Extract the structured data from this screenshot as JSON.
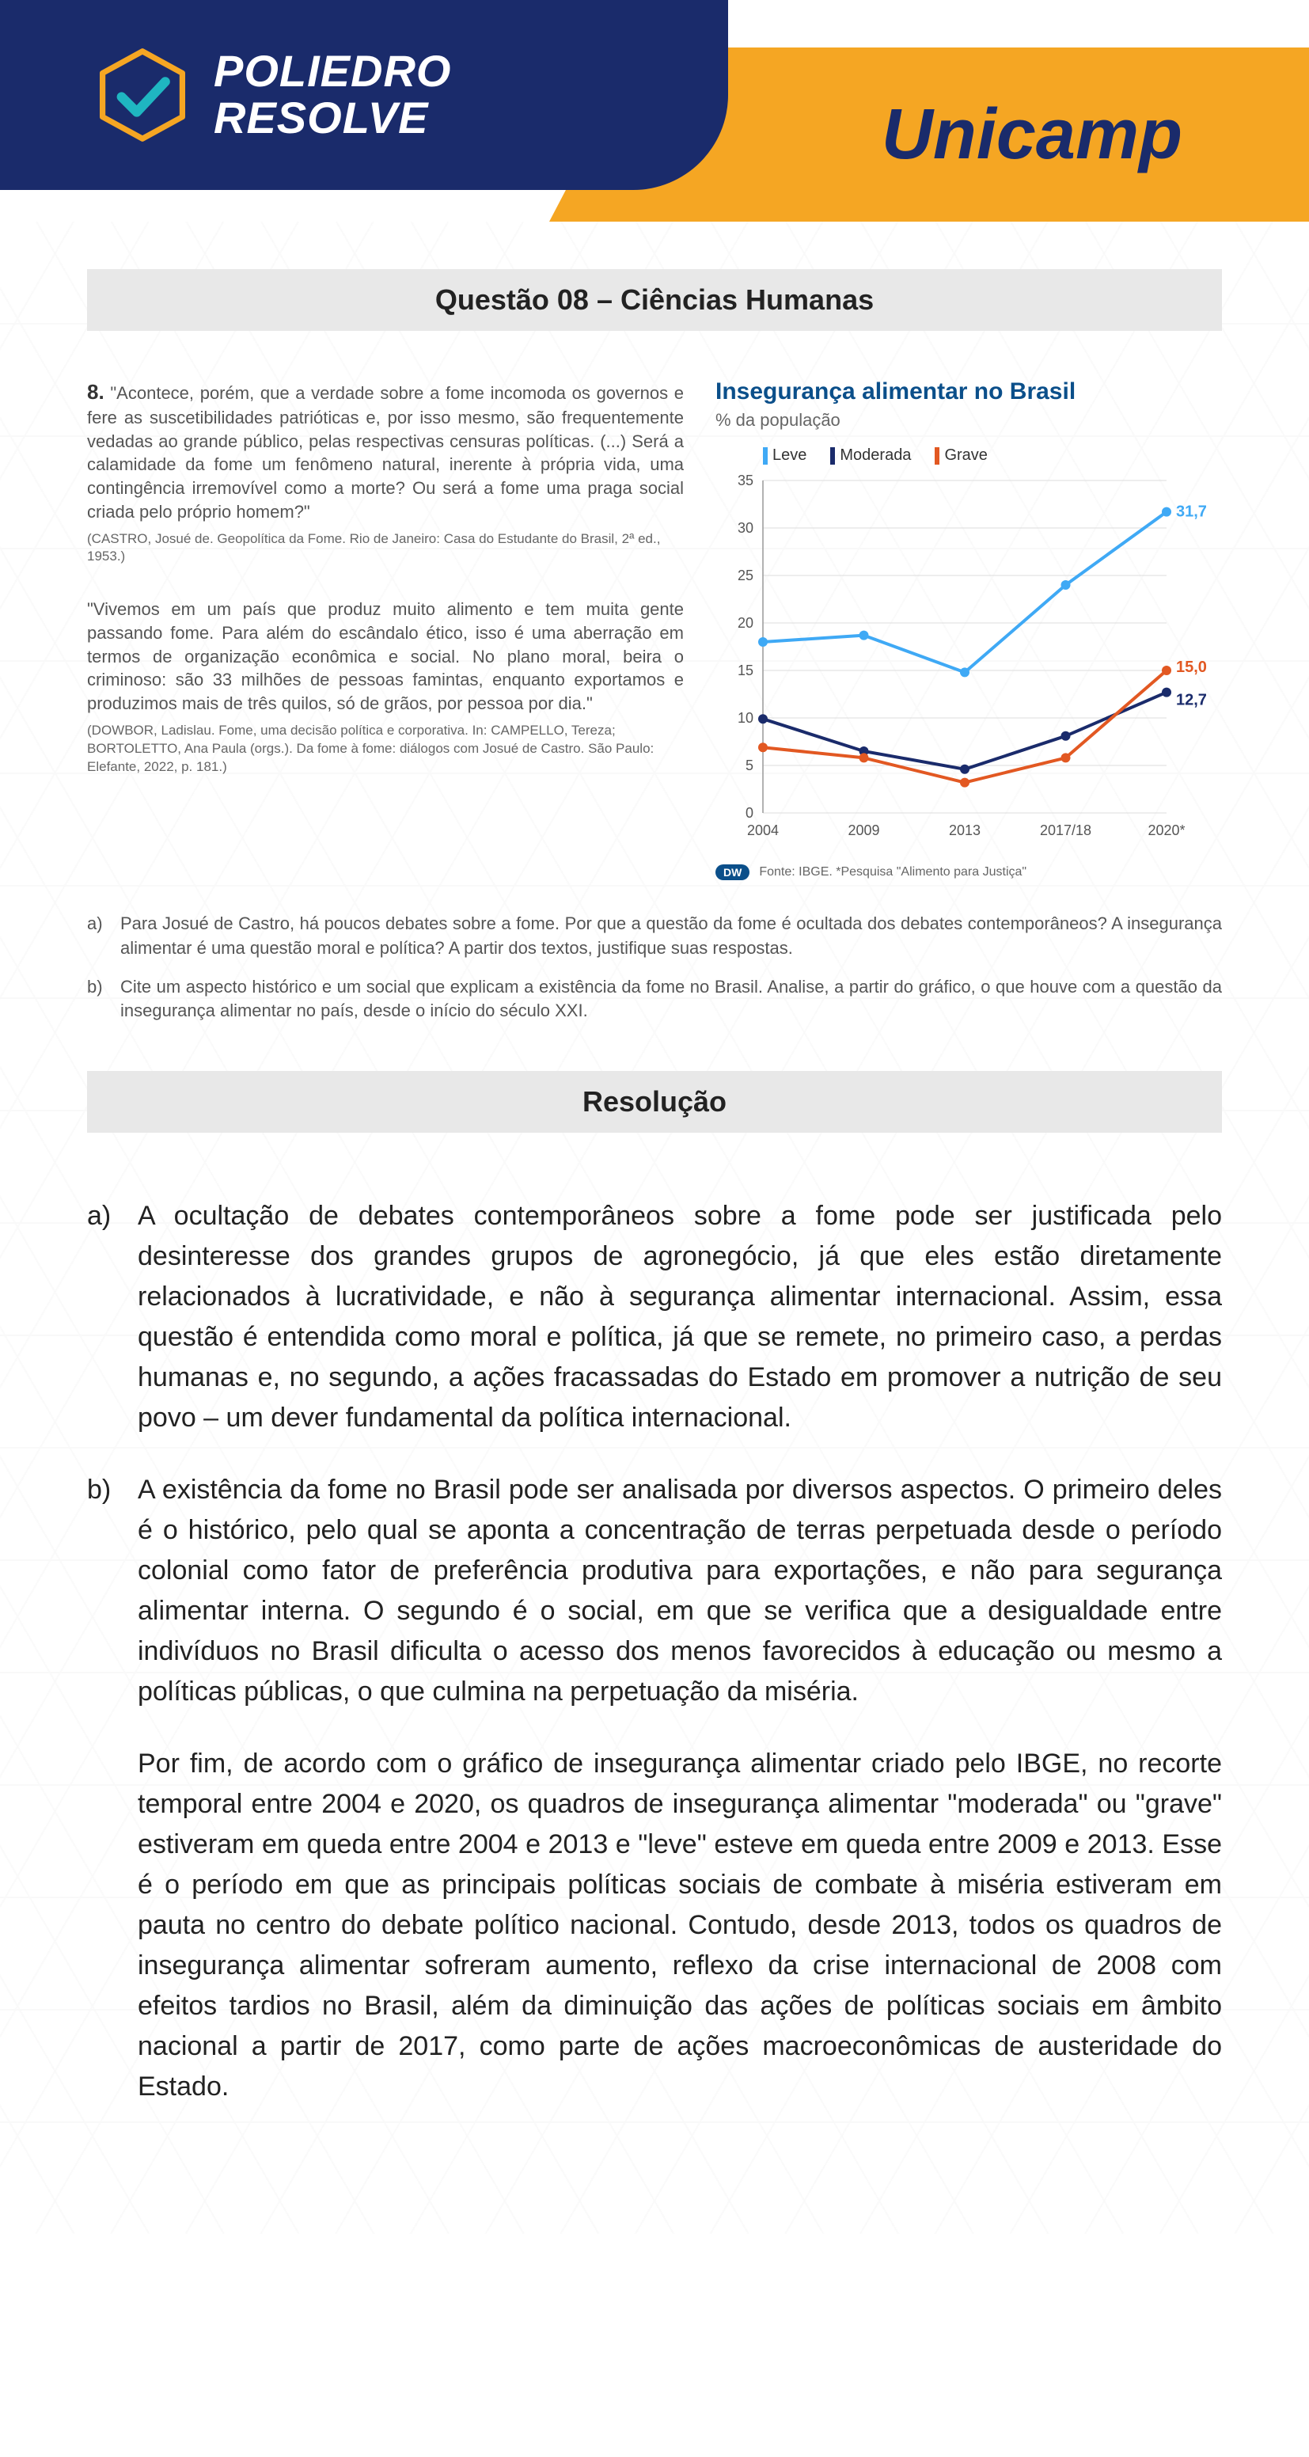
{
  "header": {
    "brand_line1": "POLIEDRO",
    "brand_line2": "RESOLVE",
    "exam": "Unicamp",
    "logo_stroke": "#f5a623",
    "logo_check": "#1fb6c1"
  },
  "section_title": "Questão 08 – Ciências Humanas",
  "question": {
    "number": "8.",
    "quote1": "\"Acontece, porém, que a verdade sobre a fome incomoda os governos e fere as suscetibilidades patrióticas e, por isso mesmo, são frequentemente vedadas ao grande público, pelas respectivas censuras políticas. (...) Será a calamidade da fome um fenômeno natural, inerente à própria vida, uma contingência irremovível como a morte? Ou será a fome uma praga social criada pelo próprio homem?\"",
    "source1": "(CASTRO, Josué de. Geopolítica da Fome. Rio de Janeiro: Casa do Estudante do Brasil, 2ª ed., 1953.)",
    "quote2": "\"Vivemos em um país que produz muito alimento e tem muita gente passando fome. Para além do escândalo ético, isso é uma aberração em termos de organização econômica e social. No plano moral, beira o criminoso: são 33 milhões de pessoas famintas, enquanto exportamos e produzimos mais de três quilos, só de grãos, por pessoa por dia.\"",
    "source2": "(DOWBOR, Ladislau. Fome, uma decisão política e corporativa. In: CAMPELLO, Tereza; BORTOLETTO, Ana Paula (orgs.). Da fome à fome: diálogos com Josué de Castro. São Paulo: Elefante, 2022, p. 181.)",
    "item_a_label": "a)",
    "item_a": "Para Josué de Castro, há poucos debates sobre a fome. Por que a questão da fome é ocultada dos debates contemporâneos? A insegurança alimentar é uma questão moral e política? A partir dos textos, justifique suas respostas.",
    "item_b_label": "b)",
    "item_b": "Cite um aspecto histórico e um social que explicam a existência da fome no Brasil. Analise, a partir do gráfico, o que houve com a questão da insegurança alimentar no país, desde o início do século XXI."
  },
  "chart": {
    "title": "Insegurança alimentar no Brasil",
    "subtitle": "% da população",
    "legend": {
      "leve": {
        "label": "Leve",
        "color": "#3fa9f5"
      },
      "moderada": {
        "label": "Moderada",
        "color": "#1a2b6b"
      },
      "grave": {
        "label": "Grave",
        "color": "#e25822"
      }
    },
    "x_labels": [
      "2004",
      "2009",
      "2013",
      "2017/18",
      "2020*"
    ],
    "y_ticks": [
      0,
      5,
      10,
      15,
      20,
      25,
      30,
      35
    ],
    "ylim": [
      0,
      35
    ],
    "grid_color": "#dddddd",
    "axis_color": "#999999",
    "text_color": "#555555",
    "end_labels": {
      "leve": "31,7",
      "grave": "15,0",
      "moderada": "12,7"
    },
    "series": {
      "leve": [
        18.0,
        18.7,
        14.8,
        24.0,
        31.7
      ],
      "moderada": [
        9.9,
        6.5,
        4.6,
        8.1,
        12.7
      ],
      "grave": [
        6.9,
        5.8,
        3.2,
        5.8,
        15.0
      ]
    },
    "line_width": 4,
    "marker_radius": 6,
    "footer_badge": "DW",
    "footer": "Fonte: IBGE. *Pesquisa \"Alimento para Justiça\""
  },
  "resolution_title": "Resolução",
  "answers": {
    "a_label": "a)",
    "a": "A ocultação de debates contemporâneos sobre a fome pode ser justificada pelo desinteresse dos grandes grupos de agronegócio, já que eles estão diretamente relacionados à lucratividade, e não à segurança alimentar internacional. Assim, essa questão é entendida como moral e política, já que se remete, no primeiro caso, a perdas humanas e, no segundo, a ações fracassadas do Estado em promover a nutrição de seu povo – um dever fundamental da política internacional.",
    "b_label": "b)",
    "b1": "A existência da fome no Brasil pode ser analisada por diversos aspectos. O primeiro deles é o histórico, pelo qual se aponta a concentração de terras perpetuada desde o período colonial como fator de preferência produtiva para exportações, e não para segurança alimentar interna. O segundo é o social, em que se verifica que a desigualdade entre indivíduos no Brasil dificulta o acesso dos menos favorecidos à educação ou mesmo a políticas públicas, o que culmina na perpetuação da miséria.",
    "b2": "Por fim, de acordo com o gráfico de insegurança alimentar criado pelo IBGE, no recorte temporal entre 2004 e 2020, os quadros de insegurança alimentar \"moderada\" ou \"grave\" estiveram em queda entre 2004 e 2013 e \"leve\" esteve em queda entre 2009 e 2013. Esse é o período em que as principais políticas sociais de combate à miséria estiveram em pauta no centro do debate político nacional. Contudo, desde 2013, todos os quadros de insegurança alimentar sofreram aumento, reflexo da crise internacional de 2008 com efeitos tardios no Brasil, além da diminuição das ações de políticas sociais em âmbito nacional a partir de 2017, como parte de ações macroeconômicas de austeridade do Estado."
  }
}
